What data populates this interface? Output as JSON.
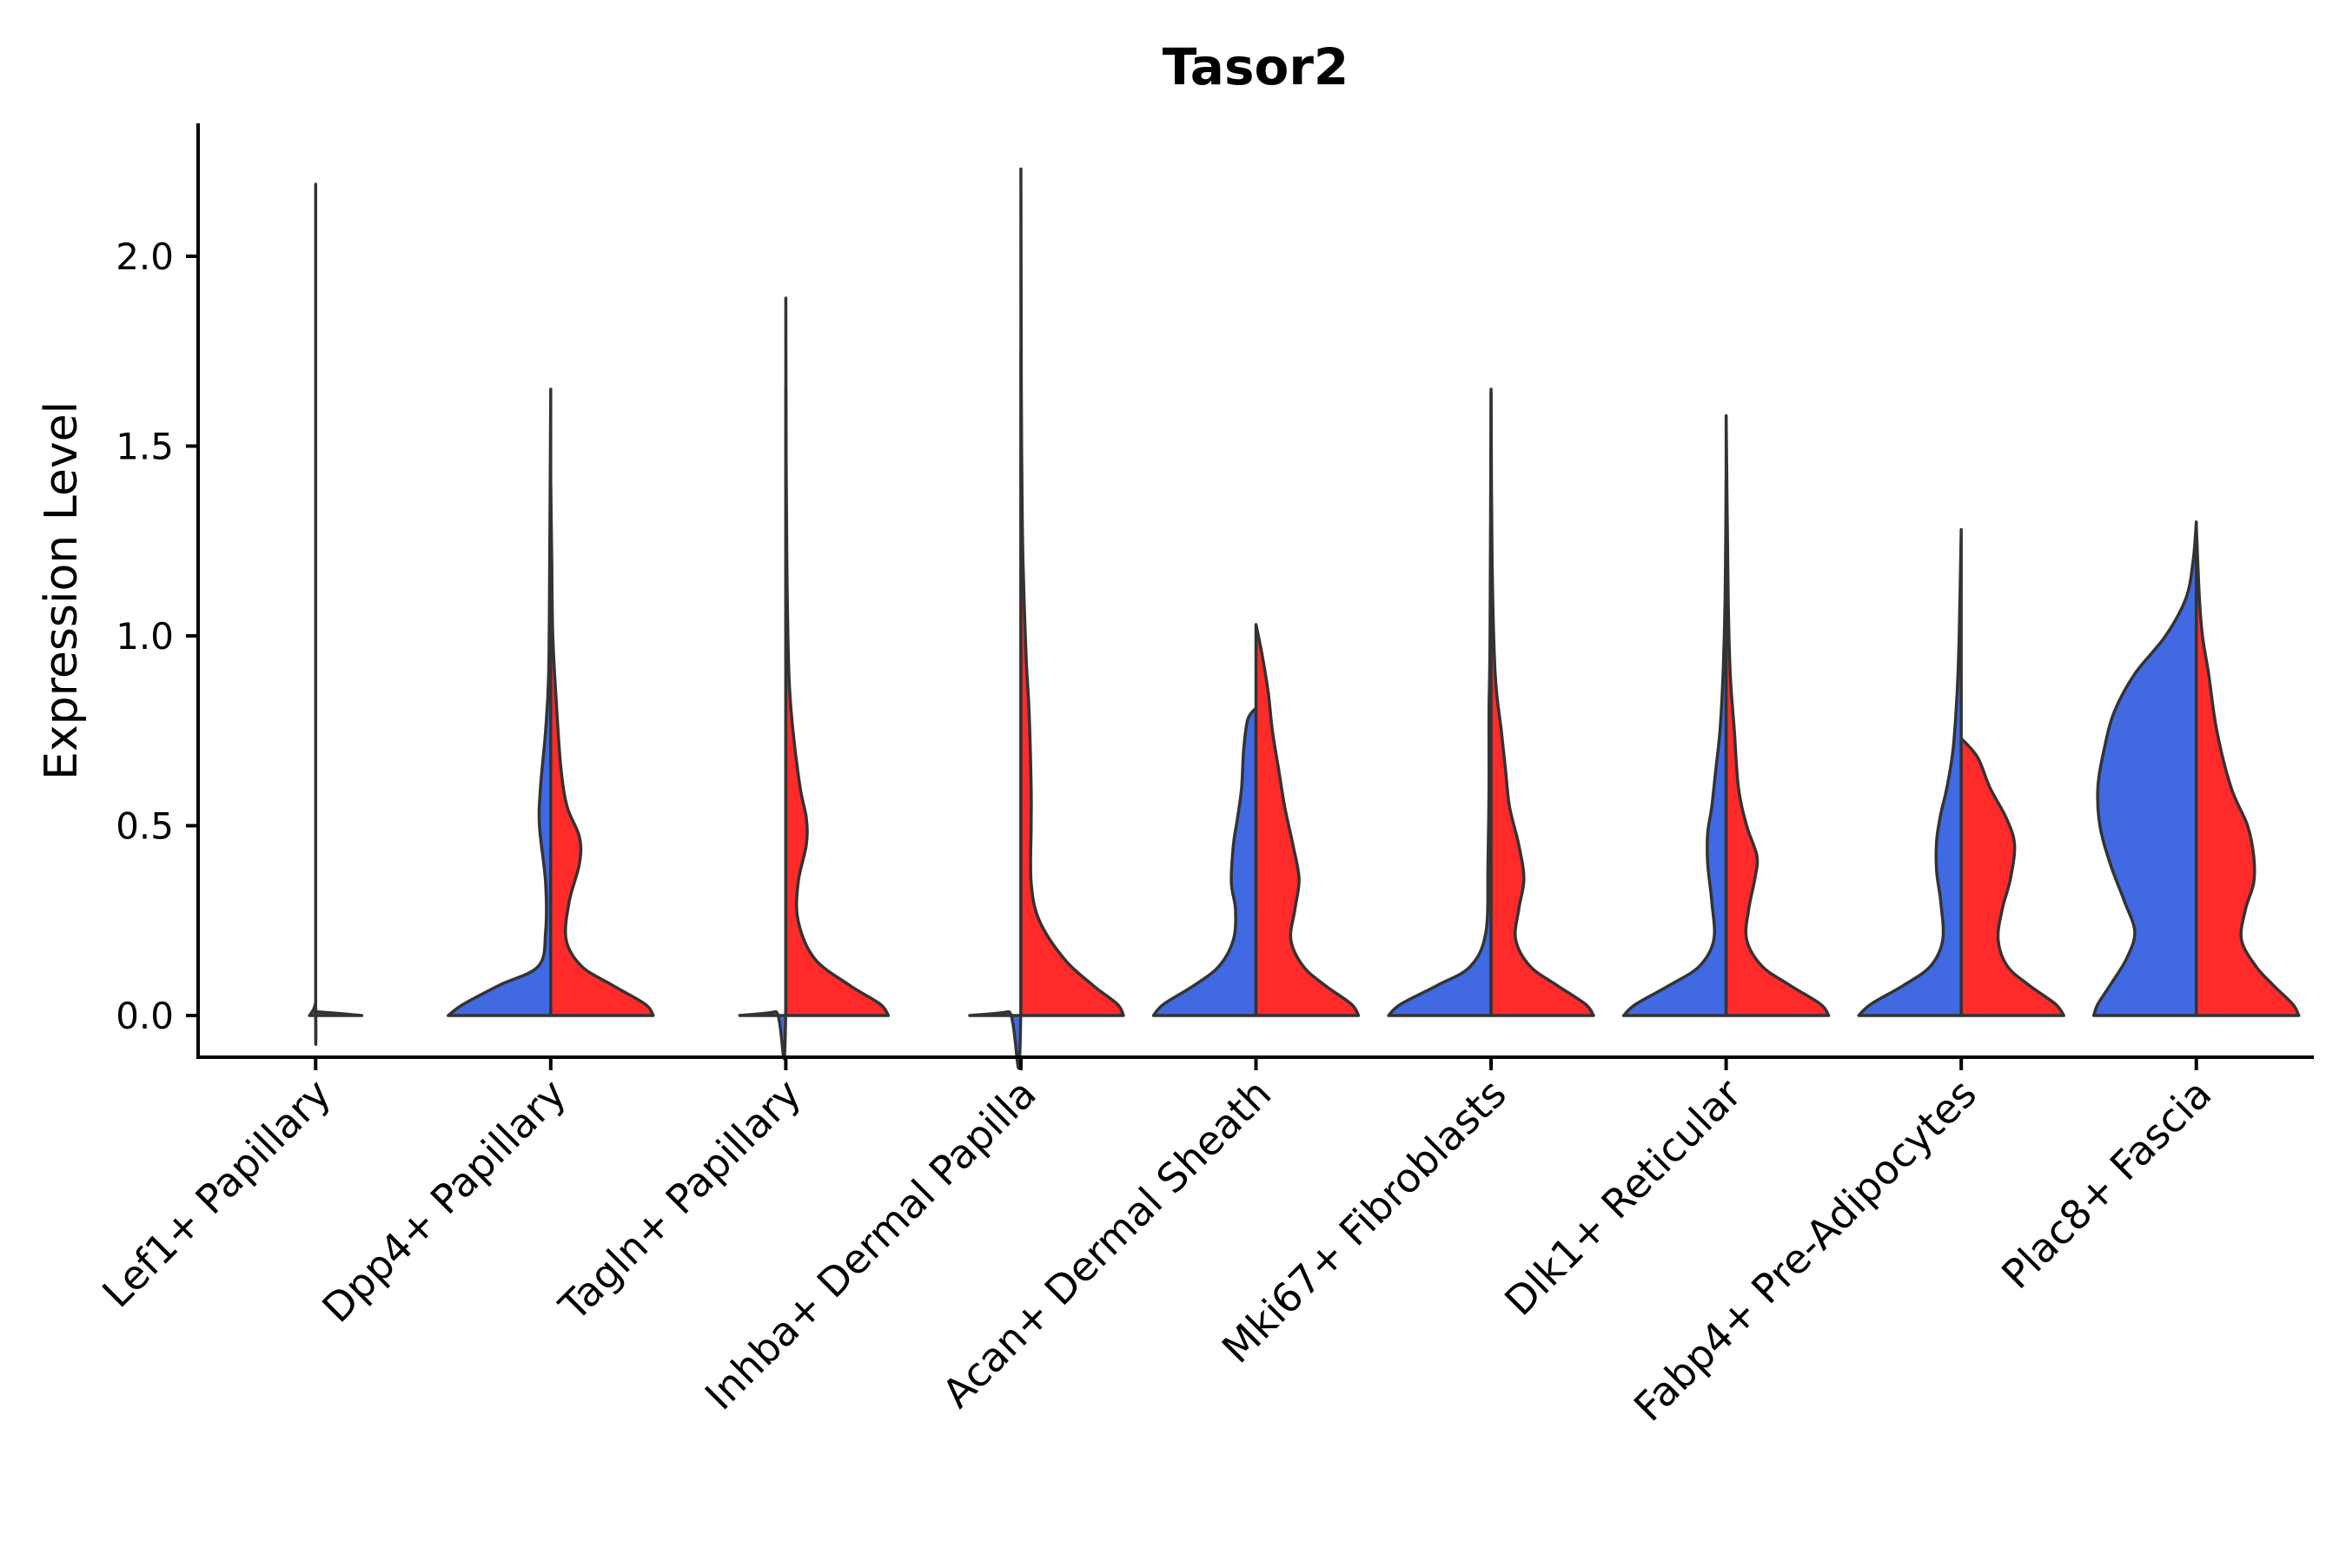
{
  "chart_data": {
    "type": "violin",
    "title": "Tasor2",
    "xlabel": "",
    "ylabel": "Expression Level",
    "ylim": [
      -0.11,
      2.35
    ],
    "yticks": [
      "0.0",
      "0.5",
      "1.0",
      "1.5",
      "2.0"
    ],
    "ytick_values": [
      0.0,
      0.5,
      1.0,
      1.5,
      2.0
    ],
    "split_colors": [
      "#4169E1",
      "#FF2A2A"
    ],
    "categories": [
      {
        "name": "Lef1+ Papillary",
        "left": {
          "max": 2.19,
          "profile": [
            [
              0,
              0.06
            ],
            [
              0.03,
              0.003
            ],
            [
              0.1,
              0
            ],
            [
              2.19,
              0
            ]
          ]
        },
        "right": {
          "max": 0.0,
          "profile": [
            [
              0,
              0.45
            ],
            [
              0.005,
              0.25
            ],
            [
              0.01,
              0
            ]
          ]
        }
      },
      {
        "name": "Dpp4+ Papillary",
        "left": {
          "max": 1.65,
          "profile": [
            [
              0,
              1
            ],
            [
              0.03,
              0.85
            ],
            [
              0.08,
              0.5
            ],
            [
              0.13,
              0.12
            ],
            [
              0.22,
              0.05
            ],
            [
              0.35,
              0.05
            ],
            [
              0.5,
              0.11
            ],
            [
              0.6,
              0.1
            ],
            [
              0.75,
              0.05
            ],
            [
              0.9,
              0.02
            ],
            [
              1.2,
              0.01
            ],
            [
              1.65,
              0
            ]
          ]
        },
        "right": {
          "max": 1.4,
          "profile": [
            [
              0,
              1
            ],
            [
              0.03,
              0.92
            ],
            [
              0.08,
              0.6
            ],
            [
              0.13,
              0.3
            ],
            [
              0.2,
              0.15
            ],
            [
              0.3,
              0.18
            ],
            [
              0.4,
              0.28
            ],
            [
              0.47,
              0.28
            ],
            [
              0.55,
              0.16
            ],
            [
              0.65,
              0.1
            ],
            [
              0.8,
              0.06
            ],
            [
              1.0,
              0.02
            ],
            [
              1.2,
              0.01
            ],
            [
              1.4,
              0
            ]
          ]
        }
      },
      {
        "name": "Tagln+ Papillary",
        "left": {
          "max": 1.89,
          "profile": [
            [
              0,
              0.45
            ],
            [
              0.01,
              0.1
            ],
            [
              0.03,
              0
            ],
            [
              1.89,
              0
            ]
          ]
        },
        "right": {
          "max": 1.65,
          "profile": [
            [
              0,
              1
            ],
            [
              0.03,
              0.92
            ],
            [
              0.08,
              0.62
            ],
            [
              0.15,
              0.28
            ],
            [
              0.25,
              0.12
            ],
            [
              0.35,
              0.12
            ],
            [
              0.45,
              0.2
            ],
            [
              0.52,
              0.2
            ],
            [
              0.6,
              0.14
            ],
            [
              0.75,
              0.07
            ],
            [
              0.9,
              0.03
            ],
            [
              1.2,
              0.01
            ],
            [
              1.65,
              0
            ]
          ]
        }
      },
      {
        "name": "Inhba+ Dermal Papilla",
        "left": {
          "max": 2.23,
          "profile": [
            [
              0,
              0.5
            ],
            [
              0.01,
              0.12
            ],
            [
              0.03,
              0
            ],
            [
              2.23,
              0
            ]
          ]
        },
        "right": {
          "max": 1.75,
          "profile": [
            [
              0,
              1
            ],
            [
              0.03,
              0.94
            ],
            [
              0.08,
              0.7
            ],
            [
              0.15,
              0.42
            ],
            [
              0.25,
              0.18
            ],
            [
              0.35,
              0.1
            ],
            [
              0.5,
              0.1
            ],
            [
              0.6,
              0.1
            ],
            [
              0.8,
              0.08
            ],
            [
              0.95,
              0.05
            ],
            [
              1.2,
              0.02
            ],
            [
              1.4,
              0.01
            ],
            [
              1.75,
              0
            ]
          ]
        }
      },
      {
        "name": "Acan+ Dermal Sheath",
        "left": {
          "max": 0.81,
          "profile": [
            [
              0,
              1
            ],
            [
              0.03,
              0.9
            ],
            [
              0.08,
              0.6
            ],
            [
              0.13,
              0.36
            ],
            [
              0.2,
              0.22
            ],
            [
              0.28,
              0.2
            ],
            [
              0.35,
              0.24
            ],
            [
              0.45,
              0.22
            ],
            [
              0.52,
              0.18
            ],
            [
              0.6,
              0.14
            ],
            [
              0.7,
              0.12
            ],
            [
              0.78,
              0.08
            ],
            [
              0.81,
              0
            ]
          ]
        },
        "right": {
          "max": 1.03,
          "profile": [
            [
              0,
              1
            ],
            [
              0.03,
              0.93
            ],
            [
              0.08,
              0.67
            ],
            [
              0.13,
              0.46
            ],
            [
              0.2,
              0.34
            ],
            [
              0.28,
              0.38
            ],
            [
              0.36,
              0.42
            ],
            [
              0.45,
              0.36
            ],
            [
              0.55,
              0.28
            ],
            [
              0.65,
              0.22
            ],
            [
              0.75,
              0.16
            ],
            [
              0.85,
              0.12
            ],
            [
              0.95,
              0.06
            ],
            [
              1.03,
              0
            ]
          ]
        }
      },
      {
        "name": "Mki67+ Fibroblasts",
        "left": {
          "max": 1.65,
          "profile": [
            [
              0,
              1
            ],
            [
              0.03,
              0.88
            ],
            [
              0.08,
              0.52
            ],
            [
              0.13,
              0.2
            ],
            [
              0.22,
              0.05
            ],
            [
              0.4,
              0.03
            ],
            [
              0.6,
              0.02
            ],
            [
              0.8,
              0.02
            ],
            [
              1.0,
              0.01
            ],
            [
              1.65,
              0
            ]
          ]
        },
        "right": {
          "max": 1.64,
          "profile": [
            [
              0,
              1
            ],
            [
              0.03,
              0.92
            ],
            [
              0.08,
              0.64
            ],
            [
              0.13,
              0.38
            ],
            [
              0.2,
              0.24
            ],
            [
              0.28,
              0.27
            ],
            [
              0.36,
              0.32
            ],
            [
              0.45,
              0.27
            ],
            [
              0.55,
              0.18
            ],
            [
              0.65,
              0.14
            ],
            [
              0.75,
              0.1
            ],
            [
              0.9,
              0.04
            ],
            [
              1.2,
              0.01
            ],
            [
              1.64,
              0
            ]
          ]
        }
      },
      {
        "name": "Dlk1+ Reticular",
        "left": {
          "max": 1.41,
          "profile": [
            [
              0,
              1
            ],
            [
              0.03,
              0.88
            ],
            [
              0.08,
              0.55
            ],
            [
              0.13,
              0.26
            ],
            [
              0.2,
              0.12
            ],
            [
              0.3,
              0.14
            ],
            [
              0.4,
              0.18
            ],
            [
              0.48,
              0.18
            ],
            [
              0.55,
              0.14
            ],
            [
              0.65,
              0.1
            ],
            [
              0.75,
              0.06
            ],
            [
              0.9,
              0.03
            ],
            [
              1.1,
              0.01
            ],
            [
              1.41,
              0
            ]
          ]
        },
        "right": {
          "max": 1.58,
          "profile": [
            [
              0,
              1
            ],
            [
              0.03,
              0.92
            ],
            [
              0.08,
              0.62
            ],
            [
              0.13,
              0.35
            ],
            [
              0.2,
              0.2
            ],
            [
              0.28,
              0.22
            ],
            [
              0.36,
              0.28
            ],
            [
              0.42,
              0.3
            ],
            [
              0.5,
              0.2
            ],
            [
              0.6,
              0.12
            ],
            [
              0.75,
              0.08
            ],
            [
              0.9,
              0.04
            ],
            [
              1.1,
              0.02
            ],
            [
              1.58,
              0
            ]
          ]
        }
      },
      {
        "name": "Fabp4+ Pre-Adipocytes",
        "left": {
          "max": 1.28,
          "profile": [
            [
              0,
              1
            ],
            [
              0.03,
              0.88
            ],
            [
              0.08,
              0.56
            ],
            [
              0.13,
              0.3
            ],
            [
              0.2,
              0.18
            ],
            [
              0.3,
              0.2
            ],
            [
              0.38,
              0.24
            ],
            [
              0.46,
              0.24
            ],
            [
              0.53,
              0.2
            ],
            [
              0.6,
              0.14
            ],
            [
              0.7,
              0.08
            ],
            [
              0.85,
              0.04
            ],
            [
              1.0,
              0.02
            ],
            [
              1.28,
              0
            ]
          ]
        },
        "right": {
          "max": 0.73,
          "profile": [
            [
              0,
              1
            ],
            [
              0.03,
              0.92
            ],
            [
              0.08,
              0.66
            ],
            [
              0.13,
              0.45
            ],
            [
              0.2,
              0.36
            ],
            [
              0.28,
              0.4
            ],
            [
              0.36,
              0.48
            ],
            [
              0.45,
              0.52
            ],
            [
              0.52,
              0.44
            ],
            [
              0.6,
              0.28
            ],
            [
              0.68,
              0.16
            ],
            [
              0.73,
              0
            ]
          ]
        }
      },
      {
        "name": "Plac8+ Fascia",
        "left": {
          "max": 1.3,
          "profile": [
            [
              0,
              1
            ],
            [
              0.03,
              0.96
            ],
            [
              0.08,
              0.84
            ],
            [
              0.15,
              0.68
            ],
            [
              0.22,
              0.6
            ],
            [
              0.3,
              0.7
            ],
            [
              0.4,
              0.84
            ],
            [
              0.5,
              0.94
            ],
            [
              0.6,
              0.96
            ],
            [
              0.7,
              0.9
            ],
            [
              0.8,
              0.8
            ],
            [
              0.9,
              0.6
            ],
            [
              1.0,
              0.3
            ],
            [
              1.1,
              0.1
            ],
            [
              1.2,
              0.03
            ],
            [
              1.3,
              0
            ]
          ]
        },
        "right": {
          "max": 1.29,
          "profile": [
            [
              0,
              1
            ],
            [
              0.03,
              0.94
            ],
            [
              0.08,
              0.75
            ],
            [
              0.13,
              0.58
            ],
            [
              0.2,
              0.44
            ],
            [
              0.28,
              0.48
            ],
            [
              0.35,
              0.56
            ],
            [
              0.42,
              0.56
            ],
            [
              0.5,
              0.5
            ],
            [
              0.6,
              0.34
            ],
            [
              0.75,
              0.2
            ],
            [
              0.9,
              0.12
            ],
            [
              1.0,
              0.06
            ],
            [
              1.1,
              0.03
            ],
            [
              1.29,
              0
            ]
          ]
        }
      }
    ]
  }
}
